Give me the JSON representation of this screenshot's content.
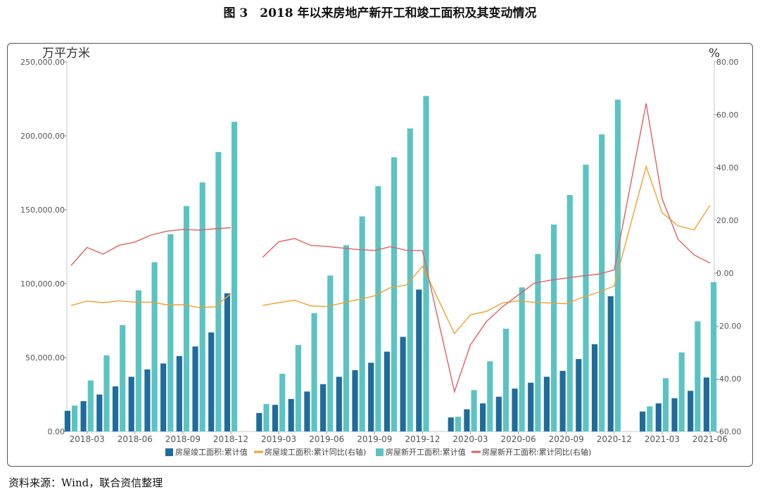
{
  "figure_title": "图 3　2018 年以来房地产新开工和竣工面积及其变动情况",
  "source_note": "资料来源：Wind，联合资信整理",
  "chart_data": {
    "type": "bar",
    "left_unit": "万平方米",
    "right_unit": "%",
    "ylim_left": [
      0,
      250000
    ],
    "ylim_right": [
      -60,
      80
    ],
    "left_ticks": [
      "0.00",
      "50,000.00",
      "100,000.00",
      "150,000.00",
      "200,000.00",
      "250,000.00"
    ],
    "right_ticks": [
      "-60.00",
      "-40.00",
      "-20.00",
      "0.00",
      "20.00",
      "40.00",
      "60.00",
      "80.00"
    ],
    "x_tick_labels": [
      "2018-03",
      "2018-06",
      "2018-09",
      "2018-12",
      "2019-03",
      "2019-06",
      "2019-09",
      "2019-12",
      "2020-03",
      "2020-06",
      "2020-09",
      "2020-12",
      "2021-03",
      "2021-06"
    ],
    "categories": [
      "2018-02",
      "2018-03",
      "2018-04",
      "2018-05",
      "2018-06",
      "2018-07",
      "2018-08",
      "2018-09",
      "2018-10",
      "2018-11",
      "2018-12",
      "2019-02",
      "2019-03",
      "2019-04",
      "2019-05",
      "2019-06",
      "2019-07",
      "2019-08",
      "2019-09",
      "2019-10",
      "2019-11",
      "2019-12",
      "2020-02",
      "2020-03",
      "2020-04",
      "2020-05",
      "2020-06",
      "2020-07",
      "2020-08",
      "2020-09",
      "2020-10",
      "2020-11",
      "2020-12",
      "2021-02",
      "2021-03",
      "2021-04",
      "2021-05",
      "2021-06"
    ],
    "series": [
      {
        "name": "房屋竣工面积:累计值",
        "axis": "left",
        "kind": "bar",
        "color": "#1f6c9c",
        "values": [
          14000,
          20500,
          25000,
          30500,
          37000,
          42000,
          46000,
          51000,
          57500,
          67000,
          93500,
          12500,
          18000,
          22000,
          27000,
          32000,
          37000,
          41500,
          46500,
          54000,
          64000,
          96000,
          9500,
          15000,
          19000,
          23500,
          29000,
          33000,
          37000,
          41000,
          49000,
          59000,
          91500,
          13500,
          19000,
          22500,
          27500,
          36500
        ]
      },
      {
        "name": "房屋竣工面积:累计同比(右轴)",
        "axis": "right",
        "kind": "line",
        "color": "#f0a030",
        "values": [
          -12.3,
          -10.6,
          -11.2,
          -10.5,
          -11.0,
          -11.0,
          -12.0,
          -12.0,
          -13.0,
          -12.8,
          -7.8,
          -12.2,
          -11.2,
          -10.3,
          -12.4,
          -12.7,
          -11.3,
          -10.0,
          -8.6,
          -5.5,
          -4.5,
          2.6,
          -22.9,
          -15.8,
          -14.5,
          -11.3,
          -10.5,
          -11.1,
          -11.3,
          -11.6,
          -9.2,
          -7.3,
          -4.9,
          40.4,
          22.9,
          17.9,
          16.4,
          25.7
        ]
      },
      {
        "name": "房屋新开工面积:累计值",
        "axis": "left",
        "kind": "bar",
        "color": "#5cc3c3",
        "values": [
          17500,
          34500,
          51500,
          72000,
          95500,
          114500,
          133500,
          152500,
          168500,
          189000,
          209500,
          18500,
          39000,
          58500,
          80000,
          105500,
          126000,
          145500,
          166000,
          185500,
          205000,
          227000,
          10000,
          28000,
          47500,
          69500,
          97500,
          120000,
          140000,
          160000,
          180500,
          201000,
          224500,
          17000,
          36000,
          53500,
          74500,
          101000
        ]
      },
      {
        "name": "房屋新开工面积:累计同比(右轴)",
        "axis": "right",
        "kind": "line",
        "color": "#e06060",
        "values": [
          2.9,
          9.7,
          7.2,
          10.5,
          11.8,
          14.4,
          15.9,
          16.5,
          16.3,
          16.8,
          17.2,
          6.0,
          11.9,
          13.1,
          10.5,
          10.1,
          9.5,
          8.9,
          8.6,
          10.0,
          8.6,
          8.5,
          -44.9,
          -27.2,
          -18.4,
          -12.8,
          -8.3,
          -3.8,
          -2.7,
          -1.9,
          -1.1,
          -0.4,
          1.2,
          64.3,
          28.2,
          12.8,
          6.9,
          3.8
        ]
      }
    ]
  }
}
